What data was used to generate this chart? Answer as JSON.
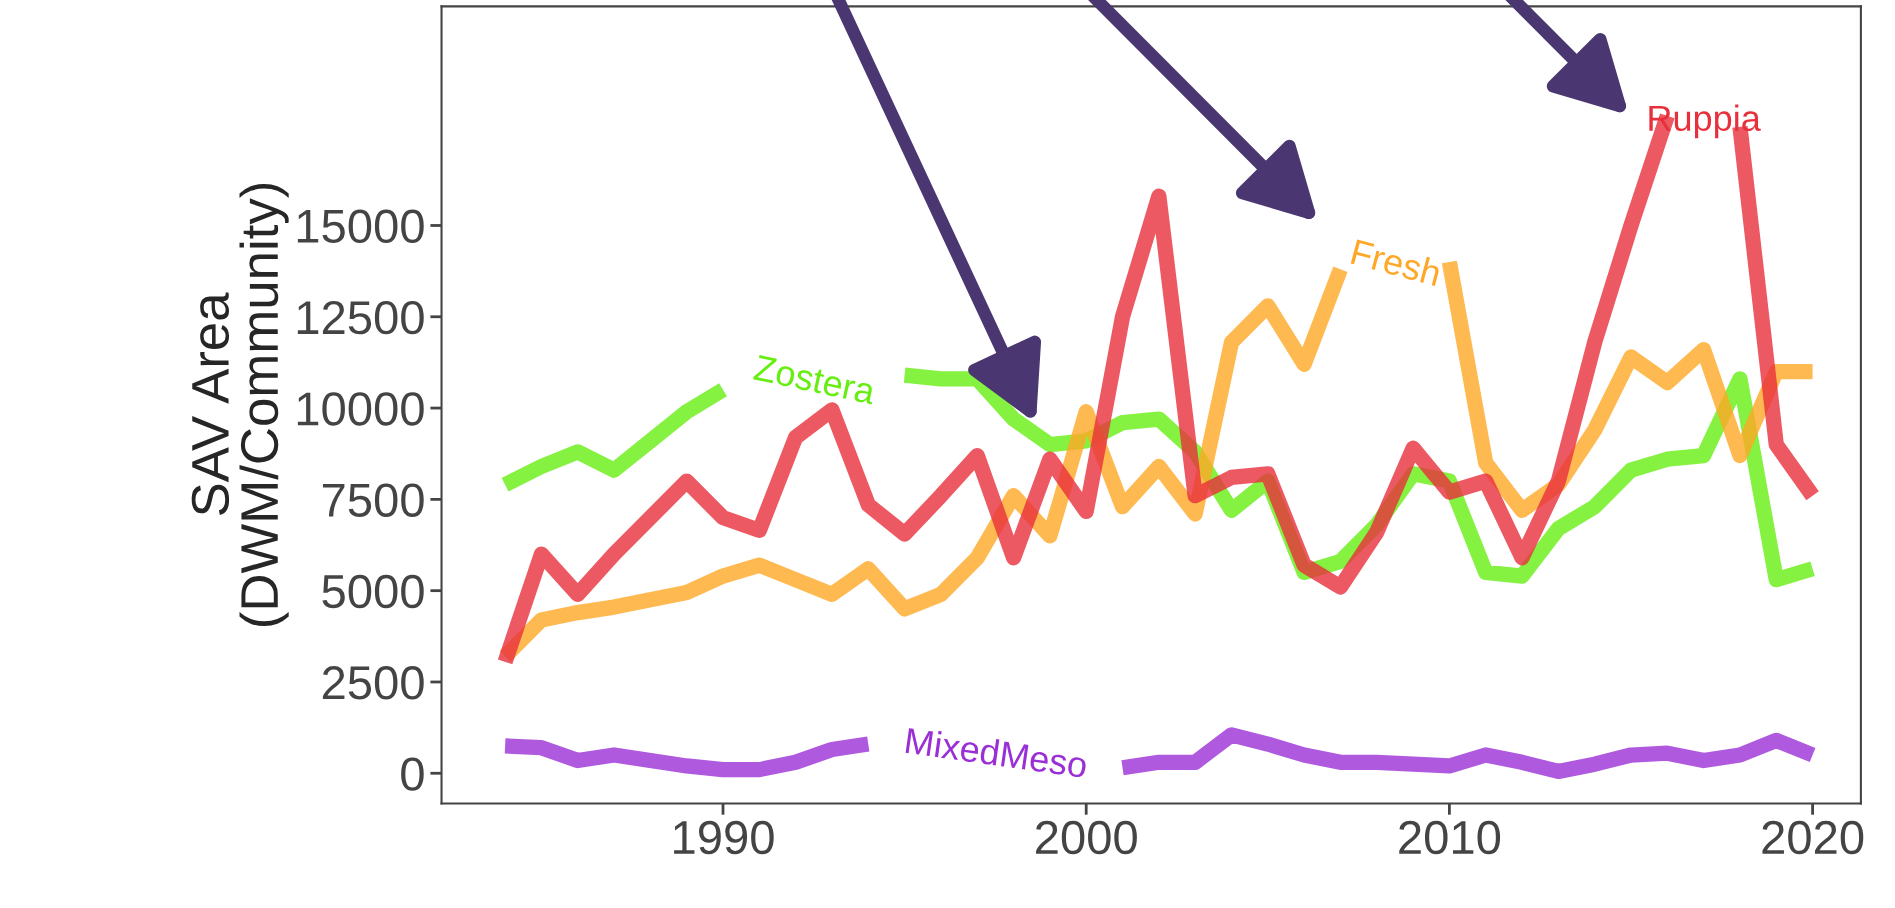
{
  "chart_data": {
    "type": "line",
    "ylabel": "SAV Area\n(DWM/Community)",
    "x": [
      1984,
      1985,
      1986,
      1987,
      1988,
      1989,
      1990,
      1991,
      1992,
      1993,
      1994,
      1995,
      1996,
      1997,
      1998,
      1999,
      2000,
      2001,
      2002,
      2003,
      2004,
      2005,
      2006,
      2007,
      2008,
      2009,
      2010,
      2011,
      2012,
      2013,
      2014,
      2015,
      2016,
      2017,
      2018,
      2019,
      2020
    ],
    "series": [
      {
        "name": "Zostera",
        "color": "#66ee11",
        "values": [
          7900,
          8400,
          8800,
          8300,
          9100,
          9900,
          10500,
          null,
          null,
          null,
          null,
          10900,
          10800,
          10800,
          9700,
          9000,
          9100,
          9600,
          9700,
          8800,
          7200,
          8000,
          5500,
          5800,
          6800,
          8200,
          8000,
          5500,
          5400,
          6700,
          7300,
          8300,
          8600,
          8700,
          10800,
          5300,
          5600
        ]
      },
      {
        "name": "Fresh",
        "color": "#ffa726",
        "values": [
          3200,
          4200,
          4400,
          4550,
          4750,
          4950,
          5400,
          5700,
          5300,
          4900,
          5600,
          4500,
          4900,
          5900,
          7600,
          6500,
          9900,
          7300,
          8400,
          7100,
          11800,
          12800,
          11200,
          13800,
          null,
          null,
          14000,
          8500,
          7200,
          7900,
          9400,
          11400,
          10700,
          11600,
          8700,
          11000,
          11000
        ]
      },
      {
        "name": "Ruppia",
        "color": "#e8303c",
        "values": [
          3050,
          6000,
          4900,
          6000,
          7000,
          8000,
          7000,
          6650,
          9200,
          9950,
          7350,
          6550,
          7600,
          8700,
          5900,
          8600,
          7170,
          12500,
          15800,
          7600,
          8100,
          8200,
          5700,
          5100,
          6600,
          8900,
          7700,
          8000,
          5900,
          8000,
          11800,
          15000,
          18000,
          null,
          17700,
          9000,
          7600
        ]
      },
      {
        "name": "MixedMeso",
        "color": "#9b2fd6",
        "values": [
          750,
          700,
          350,
          500,
          350,
          200,
          100,
          100,
          300,
          650,
          800,
          null,
          null,
          null,
          null,
          null,
          null,
          150,
          300,
          300,
          1050,
          800,
          500,
          300,
          300,
          250,
          200,
          500,
          300,
          50,
          250,
          500,
          550,
          350,
          500,
          900,
          500
        ]
      }
    ],
    "xlim": [
      1982.25,
      2021.33
    ],
    "xticks": [
      1990,
      2000,
      2010,
      2020
    ],
    "ylim": [
      -830,
      21000
    ],
    "yticks": [
      0,
      2500,
      5000,
      7500,
      10000,
      12500,
      15000
    ],
    "grid": false,
    "legend": false
  }
}
